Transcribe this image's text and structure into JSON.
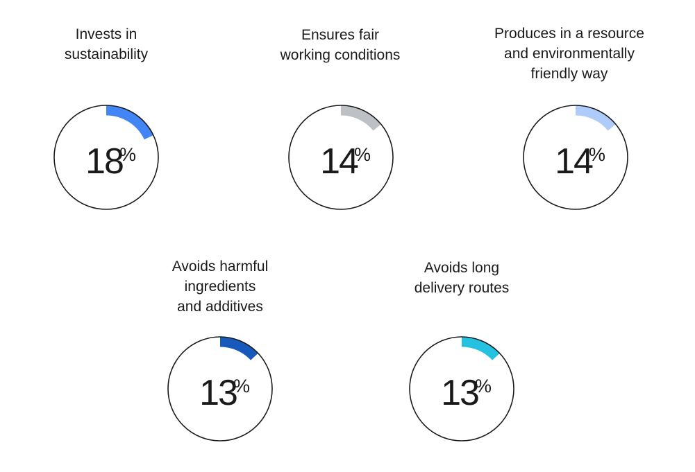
{
  "chart_data": {
    "type": "radial-progress",
    "unit": "%",
    "items": [
      {
        "label": "Invests in\nsustainability",
        "value": 18,
        "color": "#4285f4"
      },
      {
        "label": "Ensures fair\nworking conditions",
        "value": 14,
        "color": "#bdc1c6"
      },
      {
        "label": "Produces in a resource\nand environmentally\nfriendly way",
        "value": 14,
        "color": "#aecbfa"
      },
      {
        "label": "Avoids harmful\ningredients\nand additives",
        "value": 13,
        "color": "#185abc"
      },
      {
        "label": "Avoids long\ndelivery routes",
        "value": 13,
        "color": "#24c1e0"
      }
    ]
  }
}
